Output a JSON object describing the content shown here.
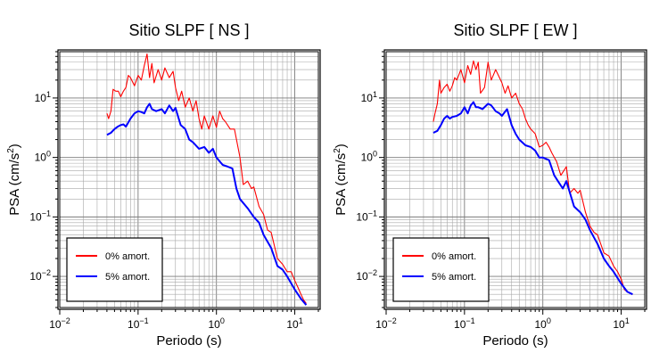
{
  "chart_data": [
    {
      "type": "line",
      "title": "Sitio SLPF [ NS ]",
      "xlabel": "Periodo (s)",
      "ylabel": "PSA (cm/s",
      "ylabel_sup": "2",
      "ylabel_close": ")",
      "xscale": "log",
      "yscale": "log",
      "xlim": [
        0.01,
        20
      ],
      "ylim": [
        0.003,
        60
      ],
      "grid": true,
      "legend_position": "bottom-left",
      "x_ticks": [
        {
          "base": "10",
          "exp": "−2"
        },
        {
          "base": "10",
          "exp": "−1"
        },
        {
          "base": "10",
          "exp": "0"
        },
        {
          "base": "10",
          "exp": "1"
        }
      ],
      "y_ticks": [
        {
          "base": "10",
          "exp": "−2"
        },
        {
          "base": "10",
          "exp": "−1"
        },
        {
          "base": "10",
          "exp": "0"
        },
        {
          "base": "10",
          "exp": "1"
        }
      ],
      "series": [
        {
          "name": "0% amort.",
          "color": "#ff0000",
          "x": [
            0.04,
            0.042,
            0.045,
            0.048,
            0.052,
            0.056,
            0.06,
            0.065,
            0.07,
            0.075,
            0.08,
            0.09,
            0.1,
            0.11,
            0.12,
            0.13,
            0.14,
            0.15,
            0.16,
            0.18,
            0.2,
            0.22,
            0.25,
            0.28,
            0.3,
            0.33,
            0.36,
            0.4,
            0.45,
            0.5,
            0.55,
            0.6,
            0.65,
            0.7,
            0.8,
            0.9,
            1.0,
            1.1,
            1.2,
            1.3,
            1.5,
            1.7,
            2.0,
            2.2,
            2.5,
            2.8,
            3.0,
            3.5,
            4.0,
            4.5,
            5.0,
            6.0,
            7.0,
            8.0,
            9.0,
            10.0,
            11.0,
            12.0,
            13.0,
            14.0
          ],
          "y": [
            5.5,
            4.5,
            6.0,
            14.0,
            13.0,
            13.0,
            10.5,
            13.0,
            15.0,
            24.0,
            22.0,
            16.0,
            24.0,
            20.0,
            35.0,
            55.0,
            22.0,
            38.0,
            18.0,
            30.0,
            20.0,
            32.0,
            22.0,
            28.0,
            15.0,
            9.0,
            13.0,
            7.0,
            10.0,
            6.0,
            9.0,
            4.5,
            3.0,
            5.0,
            3.0,
            5.0,
            3.2,
            6.0,
            4.5,
            4.0,
            3.0,
            3.0,
            1.0,
            0.35,
            0.4,
            0.3,
            0.32,
            0.15,
            0.11,
            0.06,
            0.055,
            0.02,
            0.016,
            0.012,
            0.012,
            0.0085,
            0.0065,
            0.005,
            0.004,
            0.0035
          ]
        },
        {
          "name": "5% amort.",
          "color": "#0000ff",
          "x": [
            0.04,
            0.045,
            0.05,
            0.055,
            0.06,
            0.065,
            0.07,
            0.08,
            0.09,
            0.1,
            0.11,
            0.12,
            0.13,
            0.14,
            0.15,
            0.17,
            0.2,
            0.22,
            0.25,
            0.28,
            0.3,
            0.35,
            0.4,
            0.45,
            0.5,
            0.6,
            0.7,
            0.8,
            0.9,
            1.0,
            1.2,
            1.4,
            1.6,
            1.8,
            2.0,
            2.5,
            3.0,
            3.5,
            4.0,
            5.0,
            6.0,
            7.0,
            8.0,
            10.0,
            12.0,
            14.0
          ],
          "y": [
            2.4,
            2.6,
            3.0,
            3.3,
            3.5,
            3.6,
            3.3,
            4.5,
            5.5,
            6.0,
            5.8,
            5.5,
            7.0,
            8.0,
            6.5,
            6.0,
            6.5,
            5.5,
            7.5,
            6.0,
            6.8,
            3.5,
            3.0,
            2.0,
            1.8,
            1.4,
            1.5,
            1.2,
            1.4,
            1.0,
            0.75,
            0.7,
            0.65,
            0.3,
            0.2,
            0.14,
            0.1,
            0.08,
            0.05,
            0.03,
            0.015,
            0.013,
            0.01,
            0.006,
            0.0042,
            0.0033
          ]
        }
      ]
    },
    {
      "type": "line",
      "title": "Sitio SLPF [ EW ]",
      "xlabel": "Periodo (s)",
      "ylabel": "PSA (cm/s",
      "ylabel_sup": "2",
      "ylabel_close": ")",
      "xscale": "log",
      "yscale": "log",
      "xlim": [
        0.01,
        20
      ],
      "ylim": [
        0.003,
        60
      ],
      "grid": true,
      "legend_position": "bottom-left",
      "x_ticks": [
        {
          "base": "10",
          "exp": "−2"
        },
        {
          "base": "10",
          "exp": "−1"
        },
        {
          "base": "10",
          "exp": "0"
        },
        {
          "base": "10",
          "exp": "1"
        }
      ],
      "y_ticks": [
        {
          "base": "10",
          "exp": "−2"
        },
        {
          "base": "10",
          "exp": "−1"
        },
        {
          "base": "10",
          "exp": "0"
        },
        {
          "base": "10",
          "exp": "1"
        }
      ],
      "series": [
        {
          "name": "0% amort.",
          "color": "#ff0000",
          "x": [
            0.04,
            0.042,
            0.045,
            0.048,
            0.05,
            0.055,
            0.06,
            0.065,
            0.07,
            0.075,
            0.08,
            0.09,
            0.1,
            0.11,
            0.12,
            0.13,
            0.14,
            0.15,
            0.16,
            0.18,
            0.2,
            0.22,
            0.25,
            0.28,
            0.3,
            0.33,
            0.36,
            0.4,
            0.45,
            0.5,
            0.55,
            0.6,
            0.65,
            0.7,
            0.8,
            0.9,
            1.0,
            1.1,
            1.2,
            1.3,
            1.5,
            1.7,
            2.0,
            2.2,
            2.5,
            2.8,
            3.0,
            3.5,
            4.0,
            4.5,
            5.0,
            6.0,
            7.0,
            8.0,
            9.0,
            10.0,
            11.0,
            12.0,
            13.0,
            14.0
          ],
          "y": [
            4.0,
            5.5,
            8.0,
            20.0,
            12.0,
            15.0,
            17.0,
            13.0,
            16.0,
            22.0,
            20.0,
            30.0,
            18.0,
            35.0,
            25.0,
            42.0,
            30.0,
            40.0,
            12.0,
            15.0,
            40.0,
            20.0,
            30.0,
            22.0,
            18.0,
            12.0,
            16.0,
            10.0,
            12.0,
            8.0,
            6.5,
            4.5,
            3.5,
            3.0,
            2.5,
            1.5,
            1.6,
            1.8,
            1.5,
            1.2,
            0.85,
            0.5,
            0.7,
            0.25,
            0.3,
            0.25,
            0.28,
            0.12,
            0.07,
            0.055,
            0.05,
            0.025,
            0.022,
            0.015,
            0.012,
            0.009,
            0.006,
            0.0055,
            0.0052,
            0.005
          ]
        },
        {
          "name": "5% amort.",
          "color": "#0000ff",
          "x": [
            0.04,
            0.045,
            0.05,
            0.055,
            0.06,
            0.065,
            0.07,
            0.08,
            0.09,
            0.1,
            0.11,
            0.12,
            0.13,
            0.14,
            0.15,
            0.17,
            0.2,
            0.22,
            0.25,
            0.28,
            0.3,
            0.35,
            0.4,
            0.45,
            0.5,
            0.6,
            0.7,
            0.8,
            0.9,
            1.0,
            1.2,
            1.4,
            1.6,
            1.8,
            2.0,
            2.5,
            3.0,
            3.5,
            4.0,
            5.0,
            6.0,
            7.0,
            8.0,
            10.0,
            12.0,
            14.0
          ],
          "y": [
            2.6,
            2.8,
            3.5,
            4.5,
            5.0,
            4.5,
            4.8,
            5.0,
            5.5,
            7.0,
            5.5,
            7.5,
            8.5,
            7.0,
            7.0,
            6.5,
            8.0,
            7.5,
            6.0,
            5.5,
            5.0,
            6.5,
            3.5,
            2.5,
            2.0,
            1.6,
            1.5,
            1.3,
            1.0,
            1.0,
            0.9,
            0.5,
            0.38,
            0.3,
            0.4,
            0.15,
            0.12,
            0.09,
            0.06,
            0.035,
            0.02,
            0.015,
            0.012,
            0.0075,
            0.0055,
            0.005
          ]
        }
      ]
    }
  ]
}
